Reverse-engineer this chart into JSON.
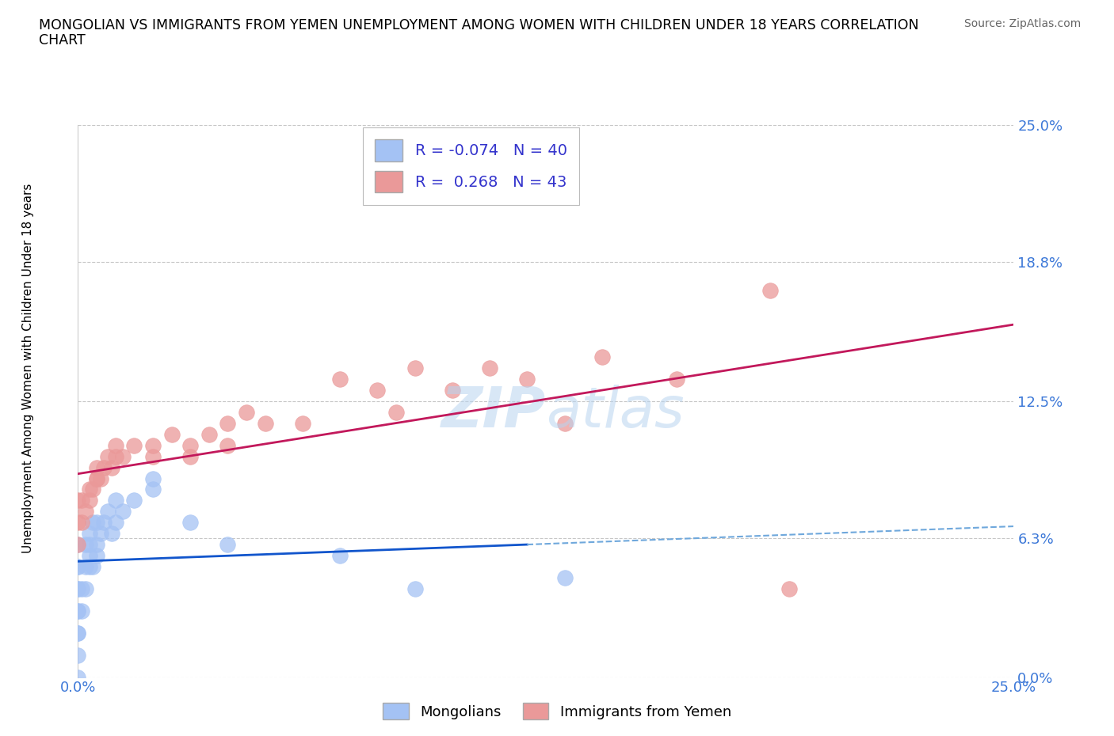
{
  "title_line1": "MONGOLIAN VS IMMIGRANTS FROM YEMEN UNEMPLOYMENT AMONG WOMEN WITH CHILDREN UNDER 18 YEARS CORRELATION",
  "title_line2": "CHART",
  "source": "Source: ZipAtlas.com",
  "ylabel": "Unemployment Among Women with Children Under 18 years",
  "xlim": [
    0.0,
    0.25
  ],
  "ylim": [
    0.0,
    0.25
  ],
  "ytick_labels": [
    "0.0%",
    "6.3%",
    "12.5%",
    "18.8%",
    "25.0%"
  ],
  "ytick_values": [
    0.0,
    0.063,
    0.125,
    0.188,
    0.25
  ],
  "xtick_labels": [
    "0.0%",
    "25.0%"
  ],
  "xtick_values": [
    0.0,
    0.25
  ],
  "mongolian_R": -0.074,
  "mongolian_N": 40,
  "yemen_R": 0.268,
  "yemen_N": 43,
  "mongolian_color": "#a4c2f4",
  "yemen_color": "#ea9999",
  "mongolian_line_solid_color": "#1155cc",
  "mongolian_line_dash_color": "#6fa8dc",
  "yemen_line_color": "#c2185b",
  "background_color": "#ffffff",
  "grid_color": "#b0b0b0",
  "mongolian_x": [
    0.0,
    0.0,
    0.0,
    0.0,
    0.0,
    0.0,
    0.0,
    0.0,
    0.0,
    0.0,
    0.0,
    0.001,
    0.001,
    0.002,
    0.002,
    0.002,
    0.003,
    0.003,
    0.003,
    0.003,
    0.004,
    0.004,
    0.005,
    0.005,
    0.005,
    0.006,
    0.007,
    0.008,
    0.009,
    0.01,
    0.01,
    0.012,
    0.015,
    0.02,
    0.02,
    0.03,
    0.04,
    0.07,
    0.09,
    0.13
  ],
  "mongolian_y": [
    0.0,
    0.01,
    0.02,
    0.02,
    0.03,
    0.03,
    0.04,
    0.04,
    0.05,
    0.05,
    0.06,
    0.03,
    0.04,
    0.04,
    0.05,
    0.06,
    0.05,
    0.055,
    0.06,
    0.065,
    0.05,
    0.07,
    0.055,
    0.06,
    0.07,
    0.065,
    0.07,
    0.075,
    0.065,
    0.07,
    0.08,
    0.075,
    0.08,
    0.085,
    0.09,
    0.07,
    0.06,
    0.055,
    0.04,
    0.045
  ],
  "yemen_x": [
    0.0,
    0.0,
    0.0,
    0.001,
    0.001,
    0.002,
    0.003,
    0.003,
    0.004,
    0.005,
    0.005,
    0.005,
    0.006,
    0.007,
    0.008,
    0.009,
    0.01,
    0.01,
    0.012,
    0.015,
    0.02,
    0.02,
    0.025,
    0.03,
    0.03,
    0.035,
    0.04,
    0.04,
    0.045,
    0.05,
    0.06,
    0.07,
    0.08,
    0.085,
    0.09,
    0.1,
    0.11,
    0.12,
    0.13,
    0.14,
    0.16,
    0.185,
    0.19
  ],
  "yemen_y": [
    0.06,
    0.07,
    0.08,
    0.07,
    0.08,
    0.075,
    0.08,
    0.085,
    0.085,
    0.09,
    0.09,
    0.095,
    0.09,
    0.095,
    0.1,
    0.095,
    0.1,
    0.105,
    0.1,
    0.105,
    0.1,
    0.105,
    0.11,
    0.1,
    0.105,
    0.11,
    0.105,
    0.115,
    0.12,
    0.115,
    0.115,
    0.135,
    0.13,
    0.12,
    0.14,
    0.13,
    0.14,
    0.135,
    0.115,
    0.145,
    0.135,
    0.175,
    0.04
  ]
}
